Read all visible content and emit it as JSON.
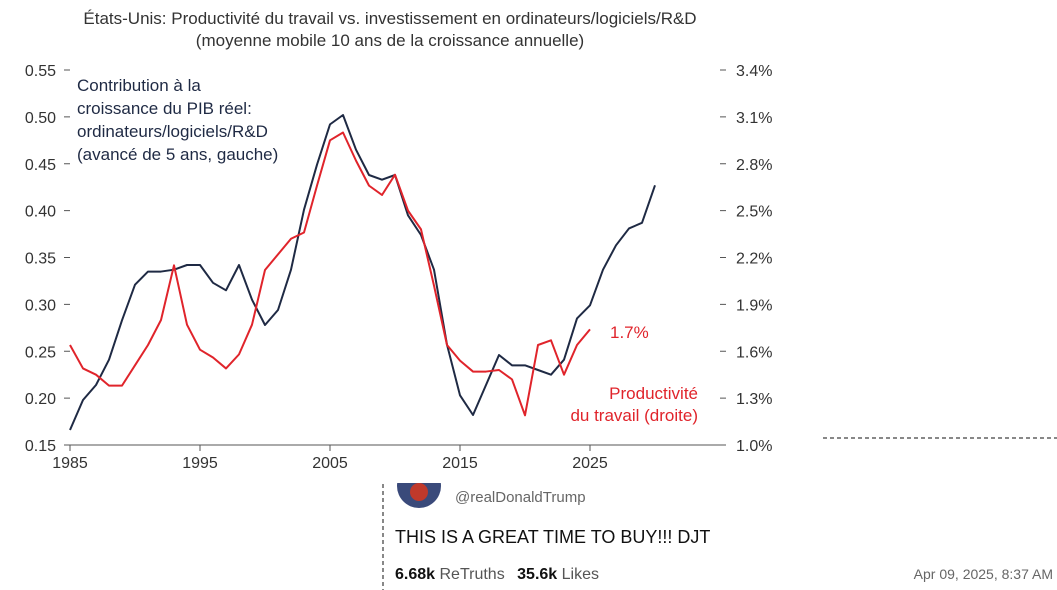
{
  "chart_data": {
    "type": "line",
    "title": "États-Unis: Productivité du travail vs. investissement en ordinateurs/logiciels/R&D",
    "subtitle": "(moyenne mobile 10 ans de la croissance annuelle)",
    "xlim": [
      1985,
      2035
    ],
    "xticks": [
      1985,
      1995,
      2005,
      2015,
      2025
    ],
    "ylim": [
      0.15,
      0.55
    ],
    "yticks": [
      0.15,
      {
        "value": 0.2,
        "label": "0.20"
      },
      0.25,
      {
        "value": 0.3,
        "label": "0.30"
      },
      0.35,
      {
        "value": 0.4,
        "label": "0.40"
      },
      0.45,
      {
        "value": 0.5,
        "label": "0.50"
      },
      0.55
    ],
    "y2lim": [
      1.0,
      3.4
    ],
    "y2ticks": [
      {
        "value": 1.0,
        "label": "1.0%"
      },
      {
        "value": 1.3,
        "label": "1.3%"
      },
      {
        "value": 1.6,
        "label": "1.6%"
      },
      {
        "value": 1.9,
        "label": "1.9%"
      },
      {
        "value": 2.2,
        "label": "2.2%"
      },
      {
        "value": 2.5,
        "label": "2.5%"
      },
      {
        "value": 2.8,
        "label": "2.8%"
      },
      {
        "value": 3.1,
        "label": "3.1%"
      },
      {
        "value": 3.4,
        "label": "3.4%"
      }
    ],
    "series": [
      {
        "name": [
          "Contribution à la",
          "croissance du PIB réel:",
          "ordinateurs/logiciels/R&D",
          "(avancé de 5 ans, gauche)"
        ],
        "color": "#1f2a44",
        "x": [
          1985,
          1986,
          1987,
          1988,
          1989,
          1990,
          1991,
          1992,
          1993,
          1994,
          1995,
          1996,
          1997,
          1998,
          1999,
          2000,
          2001,
          2002,
          2003,
          2004,
          2005,
          2006,
          2007,
          2008,
          2009,
          2010,
          2011,
          2012,
          2013,
          2014,
          2015,
          2016,
          2017,
          2018,
          2019,
          2020,
          2021,
          2022,
          2023,
          2024,
          2025,
          2026,
          2027,
          2028,
          2029,
          2030
        ],
        "values": [
          0.166,
          0.198,
          0.214,
          0.241,
          0.283,
          0.321,
          0.335,
          0.335,
          0.337,
          0.342,
          0.342,
          0.323,
          0.315,
          0.342,
          0.305,
          0.278,
          0.294,
          0.337,
          0.401,
          0.449,
          0.492,
          0.502,
          0.465,
          0.438,
          0.433,
          0.438,
          0.395,
          0.374,
          0.337,
          0.257,
          0.203,
          0.182,
          0.214,
          0.246,
          0.235,
          0.235,
          0.23,
          0.225,
          0.241,
          0.285,
          0.299,
          0.337,
          0.363,
          0.381,
          0.387,
          0.427
        ]
      },
      {
        "name": [
          "Productivité",
          "du travail (droite)"
        ],
        "color": "#e0242b",
        "axis": "y2",
        "x": [
          1985,
          1986,
          1987,
          1988,
          1989,
          1990,
          1991,
          1992,
          1993,
          1994,
          1995,
          1996,
          1997,
          1998,
          1999,
          2000,
          2001,
          2002,
          2003,
          2004,
          2005,
          2006,
          2007,
          2008,
          2009,
          2010,
          2011,
          2012,
          2013,
          2014,
          2015,
          2016,
          2017,
          2018,
          2019,
          2020,
          2021,
          2022,
          2023,
          2024,
          2025
        ],
        "values": [
          1.64,
          1.49,
          1.45,
          1.38,
          1.38,
          1.51,
          1.64,
          1.8,
          2.15,
          1.77,
          1.61,
          1.56,
          1.49,
          1.58,
          1.77,
          2.12,
          2.22,
          2.32,
          2.36,
          2.66,
          2.95,
          3.0,
          2.82,
          2.66,
          2.6,
          2.73,
          2.5,
          2.38,
          2.02,
          1.64,
          1.54,
          1.47,
          1.47,
          1.48,
          1.42,
          1.19,
          1.64,
          1.67,
          1.45,
          1.64,
          1.74
        ]
      }
    ],
    "annotation": "1.7%"
  },
  "post": {
    "handle": "@realDonaldTrump",
    "text": "THIS IS A GREAT TIME TO BUY!!! DJT",
    "retruths": "6.68k",
    "retruths_label": "ReTruths",
    "likes": "35.6k",
    "likes_label": "Likes",
    "date": "Apr 09, 2025, 8:37 AM"
  }
}
